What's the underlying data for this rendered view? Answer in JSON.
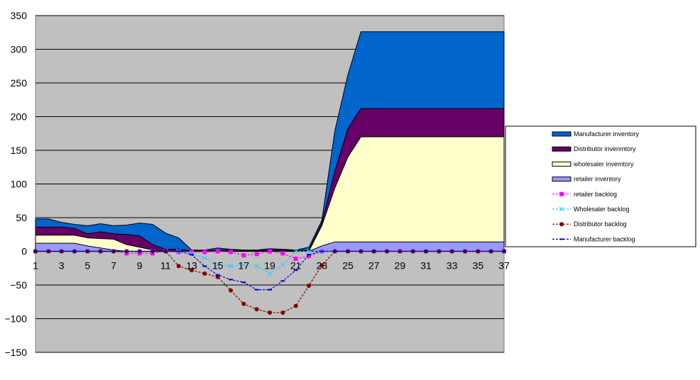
{
  "chart_data": {
    "type": "area",
    "x": [
      1,
      2,
      3,
      4,
      5,
      6,
      7,
      8,
      9,
      10,
      11,
      12,
      13,
      14,
      15,
      16,
      17,
      18,
      19,
      20,
      21,
      22,
      23,
      24,
      25,
      26,
      27,
      28,
      29,
      30,
      31,
      32,
      33,
      34,
      35,
      36,
      37
    ],
    "x_tick_labels": [
      "1",
      "3",
      "5",
      "7",
      "9",
      "11",
      "13",
      "15",
      "17",
      "19",
      "21",
      "23",
      "25",
      "27",
      "29",
      "31",
      "33",
      "35",
      "37"
    ],
    "y_tick_labels": [
      "350",
      "300",
      "250",
      "200",
      "150",
      "100",
      "50",
      "0",
      "−50",
      "−100",
      "−150"
    ],
    "ylim": [
      -150,
      350
    ],
    "grid": true,
    "plot_background": "#c0c0c0",
    "legend_position": "right",
    "stacked_series": [
      {
        "name": "retailer inventory",
        "color": "#9999ff",
        "values": [
          12,
          12,
          12,
          12,
          8,
          5,
          2,
          0,
          0,
          0,
          0,
          0,
          0,
          0,
          0,
          0,
          0,
          0,
          0,
          0,
          0,
          0,
          8,
          14,
          14,
          14,
          14,
          14,
          14,
          14,
          14,
          14,
          14,
          14,
          14,
          14,
          14
        ]
      },
      {
        "name": "wholesaler invemtory",
        "color": "#ffffcc",
        "values": [
          12,
          12,
          12,
          12,
          12,
          14,
          16,
          10,
          6,
          2,
          0,
          0,
          0,
          0,
          0,
          0,
          0,
          0,
          0,
          0,
          0,
          0,
          30,
          80,
          126,
          156,
          156,
          156,
          156,
          156,
          156,
          156,
          156,
          156,
          156,
          156,
          156
        ]
      },
      {
        "name": "Distributor invenmtory",
        "color": "#660066",
        "values": [
          12,
          12,
          12,
          10,
          6,
          10,
          8,
          15,
          17,
          8,
          3,
          3,
          1,
          1,
          2,
          2,
          1,
          1,
          2,
          2,
          1,
          2,
          4,
          25,
          42,
          42,
          42,
          42,
          42,
          42,
          42,
          42,
          42,
          42,
          42,
          42,
          42
        ]
      },
      {
        "name": "Manufacturer inventory",
        "color": "#0066cc",
        "values": [
          12,
          12,
          7,
          6,
          12,
          12,
          12,
          14,
          19,
          30,
          24,
          17,
          1,
          1,
          3,
          1,
          1,
          1,
          2,
          1,
          1,
          4,
          4,
          60,
          80,
          114,
          114,
          114,
          114,
          114,
          114,
          114,
          114,
          114,
          114,
          114,
          114
        ]
      }
    ],
    "line_series": [
      {
        "name": "retailer backlog",
        "color": "#ff00ff",
        "marker": "square",
        "values": [
          0,
          0,
          0,
          0,
          0,
          0,
          0,
          -3,
          -3,
          -3,
          0,
          -1,
          -1,
          -1,
          0,
          -1,
          -6,
          -4,
          0,
          -3,
          -11,
          -7,
          0,
          0,
          0,
          0,
          0,
          0,
          0,
          0,
          0,
          0,
          0,
          0,
          0,
          0,
          0
        ]
      },
      {
        "name": "Wholesaler backlog",
        "color": "#33ccff",
        "marker": "x",
        "values": [
          0,
          0,
          0,
          0,
          0,
          0,
          0,
          0,
          0,
          0,
          0,
          0,
          -3,
          -10,
          -20,
          -22,
          -20,
          -22,
          -33,
          -20,
          0,
          0,
          0,
          0,
          0,
          0,
          0,
          0,
          0,
          0,
          0,
          0,
          0,
          0,
          0,
          0,
          0
        ]
      },
      {
        "name": "Distributor backlog",
        "color": "#800000",
        "marker": "circle",
        "values": [
          0,
          0,
          0,
          0,
          0,
          0,
          0,
          0,
          0,
          0,
          0,
          -22,
          -28,
          -33,
          -38,
          -58,
          -78,
          -86,
          -91,
          -91,
          -81,
          -51,
          -21,
          0,
          0,
          0,
          0,
          0,
          0,
          0,
          0,
          0,
          0,
          0,
          0,
          0,
          0
        ]
      },
      {
        "name": "Manufacturer backlog",
        "color": "#0000cc",
        "marker": "dash",
        "values": [
          0,
          0,
          0,
          0,
          0,
          0,
          0,
          0,
          0,
          0,
          0,
          0,
          -5,
          -22,
          -35,
          -42,
          -46,
          -57,
          -57,
          -44,
          -28,
          -5,
          0,
          0,
          0,
          0,
          0,
          0,
          0,
          0,
          0,
          0,
          0,
          0,
          0,
          0,
          0
        ]
      }
    ]
  }
}
